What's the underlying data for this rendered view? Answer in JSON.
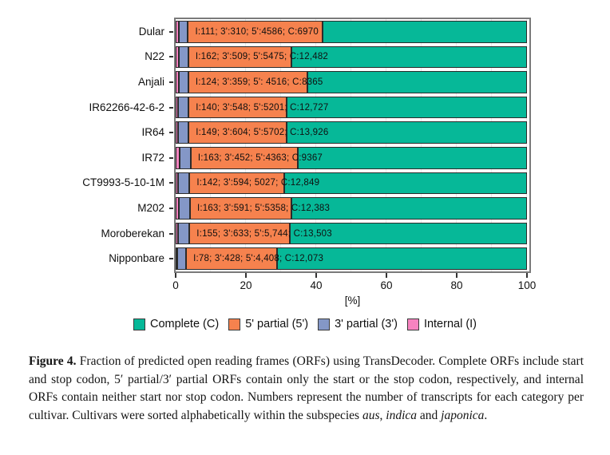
{
  "chart_data": {
    "type": "bar",
    "orientation": "horizontal",
    "stacked": true,
    "title": "",
    "xlabel": "[%]",
    "ylabel": "",
    "xlim": [
      0,
      100
    ],
    "x_ticks": [
      0,
      20,
      40,
      60,
      80,
      100
    ],
    "grid": true,
    "legend_position": "bottom",
    "categories": [
      "Dular",
      "N22",
      "Anjali",
      "IR62266-42-6-2",
      "IR64",
      "IR72",
      "CT9993-5-10-1M",
      "M202",
      "Moroberekan",
      "Nipponbare"
    ],
    "series": [
      {
        "key": "internal",
        "name": "Internal (I)",
        "color": "#F783C0",
        "values": [
          111,
          162,
          124,
          140,
          149,
          163,
          142,
          163,
          155,
          78
        ]
      },
      {
        "key": "partial3",
        "name": "3' partial (3')",
        "color": "#8497C7",
        "values": [
          310,
          509,
          359,
          548,
          604,
          452,
          594,
          591,
          633,
          428
        ]
      },
      {
        "key": "partial5",
        "name": "5' partial (5')",
        "color": "#F6824E",
        "values": [
          4586,
          5475,
          4516,
          5201,
          5702,
          4363,
          5027,
          5358,
          5744,
          4408
        ]
      },
      {
        "key": "complete",
        "name": "Complete (C)",
        "color": "#06B898",
        "values": [
          6970,
          12482,
          8365,
          12727,
          13926,
          9367,
          12849,
          12383,
          13503,
          12073
        ]
      }
    ],
    "bar_labels": [
      "I:111; 3':310; 5':4586; C:6970",
      "I:162; 3':509; 5':5475; C:12,482",
      "I:124; 3':359; 5': 4516; C:8365",
      "I:140; 3':548; 5':5201; C:12,727",
      "I:149; 3':604; 5':5702; C:13,926",
      "I:163; 3':452; 5':4363; C:9367",
      "I:142; 3':594; 5027; C:12,849",
      "I:163; 3':591; 5':5358; C:12,383",
      "I:155; 3':633; 5':5,744; C:13,503",
      "I:78; 3':428; 5':4,408; C:12,073"
    ],
    "legend": [
      {
        "key": "complete",
        "label": "Complete (C)",
        "color": "#06B898"
      },
      {
        "key": "partial5",
        "label": "5' partial (5')",
        "color": "#F6824E"
      },
      {
        "key": "partial3",
        "label": "3' partial (3')",
        "color": "#8497C7"
      },
      {
        "key": "internal",
        "label": "Internal (I)",
        "color": "#F783C0"
      }
    ]
  },
  "caption": {
    "label": "Figure 4.",
    "body": " Fraction of predicted open reading frames (ORFs) using TransDecoder. Complete ORFs include start and stop codon, 5′ partial/3′ partial ORFs contain only the start or the stop codon, respectively, and internal ORFs contain neither start nor stop codon. Numbers represent the number of transcripts for each category per cultivar. Cultivars were sorted alphabetically within the subspecies ",
    "italic1": "aus",
    "sep1": ", ",
    "italic2": "indica",
    "sep2": " and ",
    "italic3": "japonica",
    "end": "."
  }
}
